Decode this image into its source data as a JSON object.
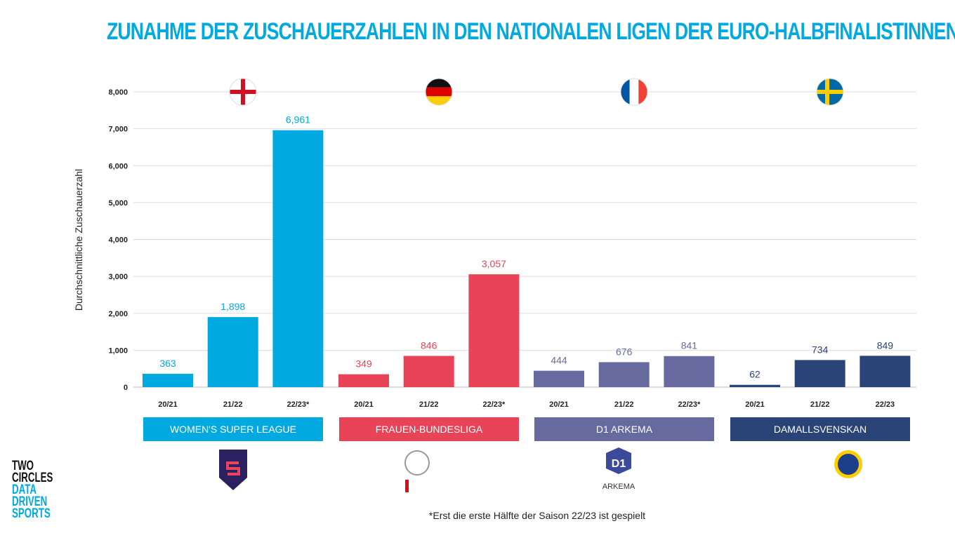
{
  "chart_data": {
    "type": "bar",
    "title": "ZUNAHME DER ZUSCHAUERZAHLEN IN DEN NATIONALEN LIGEN DER EURO-HALBFINALISTINNEN",
    "ylabel": "Durchschnittliche Zuschauerzahl",
    "ylim": [
      0,
      8000
    ],
    "yticks": [
      0,
      1000,
      2000,
      3000,
      4000,
      5000,
      6000,
      7000,
      8000
    ],
    "ytick_labels": [
      "0",
      "1,000",
      "2,000",
      "3,000",
      "4,000",
      "5,000",
      "6,000",
      "7,000",
      "8,000"
    ],
    "grid": true,
    "groups": [
      {
        "name": "WOMEN'S SUPER LEAGUE",
        "flag": "england-flag",
        "color": "#00a9e0",
        "categories": [
          "20/21",
          "21/22",
          "22/23*"
        ],
        "values": [
          363,
          1898,
          6961
        ],
        "labels": [
          "363",
          "1,898",
          "6,961"
        ]
      },
      {
        "name": "FRAUEN-BUNDESLIGA",
        "flag": "germany-flag",
        "color": "#e84356",
        "categories": [
          "20/21",
          "21/22",
          "22/23*"
        ],
        "values": [
          349,
          846,
          3057
        ],
        "labels": [
          "349",
          "846",
          "3,057"
        ]
      },
      {
        "name": "D1 ARKEMA",
        "flag": "france-flag",
        "color": "#666a9e",
        "categories": [
          "20/21",
          "21/22",
          "22/23*"
        ],
        "values": [
          444,
          676,
          841
        ],
        "labels": [
          "444",
          "676",
          "841"
        ]
      },
      {
        "name": "DAMALLSVENSKAN",
        "flag": "sweden-flag",
        "color": "#2a4477",
        "categories": [
          "20/21",
          "21/22",
          "22/23"
        ],
        "values": [
          62,
          734,
          849
        ],
        "labels": [
          "62",
          "734",
          "849"
        ]
      }
    ],
    "footnote": "*Erst die erste Hälfte der Saison 22/23 ist gespielt"
  },
  "brand": {
    "line1": "TWO",
    "line2": "CIRCLES",
    "line3": "DATA",
    "line4": "DRIVEN",
    "line5": "SPORTS"
  },
  "logos": {
    "wsl": "BARCLAYS WOMEN'S SUPER LEAGUE",
    "fbl": "FLYERALARM FRAUEN-BUNDESLIGA",
    "d1": "D1 ARKEMA",
    "dam": "DAMALLSVENSKAN"
  }
}
